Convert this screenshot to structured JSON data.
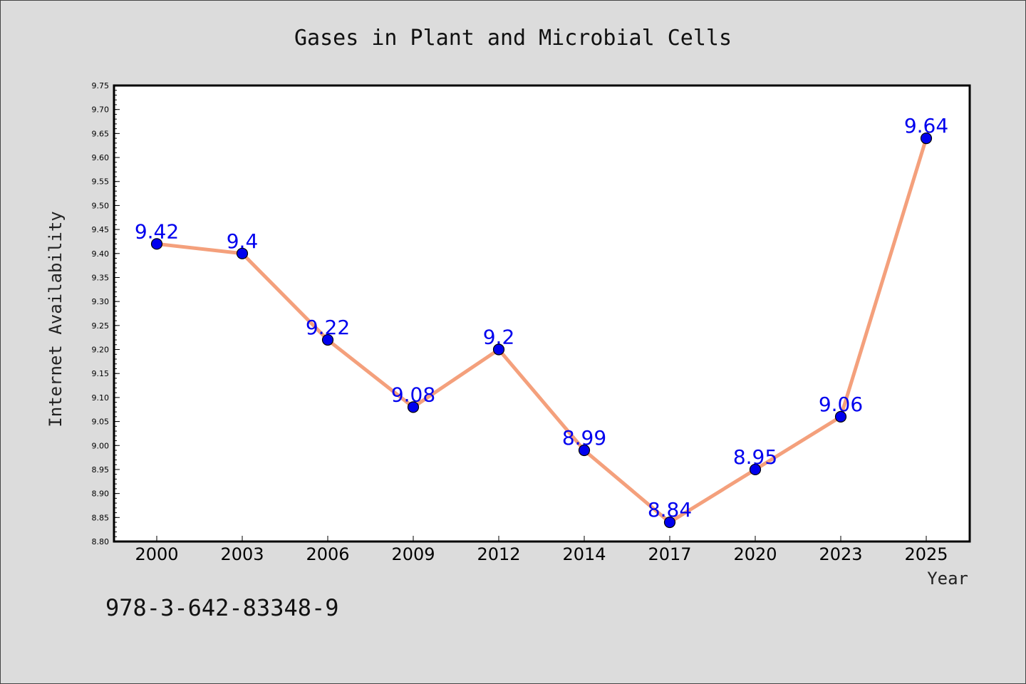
{
  "chart_data": {
    "type": "line",
    "title": "Gases in Plant and Microbial Cells",
    "xlabel": "Year",
    "ylabel": "Internet Availability",
    "categories": [
      "2000",
      "2003",
      "2006",
      "2009",
      "2012",
      "2014",
      "2017",
      "2020",
      "2023",
      "2025"
    ],
    "series": [
      {
        "values": [
          9.42,
          9.4,
          9.22,
          9.08,
          9.2,
          8.99,
          8.84,
          8.95,
          9.06,
          9.64
        ],
        "data_labels": [
          "9.42",
          "9.4",
          "9.22",
          "9.08",
          "9.2",
          "8.99",
          "8.84",
          "8.95",
          "9.06",
          "9.64"
        ],
        "line_color": "#f4a07c",
        "marker_color": "#0000ee",
        "label_color": "#0000ee"
      }
    ],
    "ylim": [
      8.8,
      9.75
    ],
    "yticks": [
      "8.80",
      "8.85",
      "8.90",
      "8.95",
      "9.00",
      "9.05",
      "9.10",
      "9.15",
      "9.20",
      "9.25",
      "9.30",
      "9.35",
      "9.40",
      "9.45",
      "9.50",
      "9.55",
      "9.60",
      "9.65",
      "9.70",
      "9.75"
    ],
    "grid": false,
    "legend": "none",
    "annotation": "978-3-642-83348-9",
    "background_color": "#dcdcdc",
    "plot_background_color": "#ffffff"
  }
}
